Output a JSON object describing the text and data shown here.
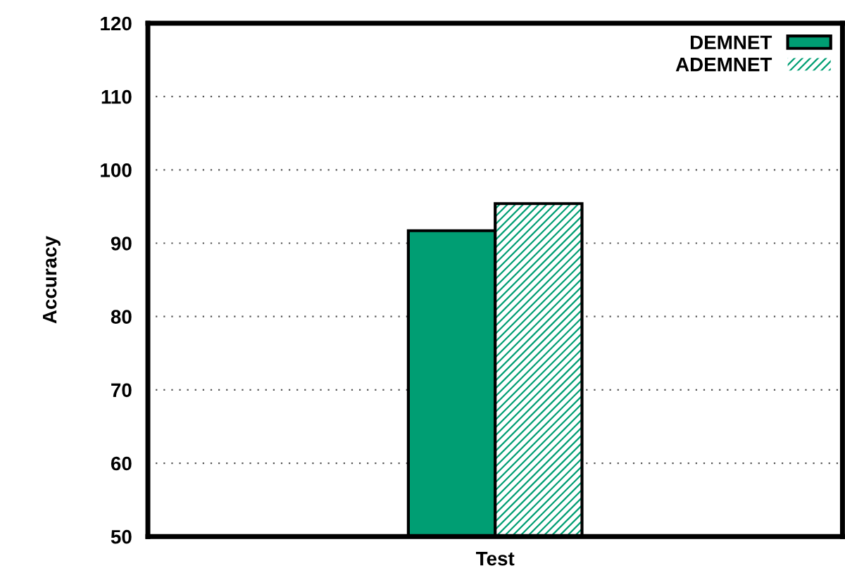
{
  "chart_data": {
    "type": "bar",
    "xlabel": "Test",
    "ylabel": "Accuracy",
    "categories": [
      null
    ],
    "series": [
      {
        "name": "DEMNET",
        "color": "#009e73",
        "values": [
          91.7
        ]
      },
      {
        "name": "ADEMNET",
        "color": "#009e73",
        "values": [
          95.4
        ]
      }
    ],
    "ylim": [
      50,
      120
    ],
    "yticks": [
      50,
      60,
      70,
      80,
      90,
      100,
      110,
      120
    ],
    "grid": "y",
    "legend": "top right"
  }
}
